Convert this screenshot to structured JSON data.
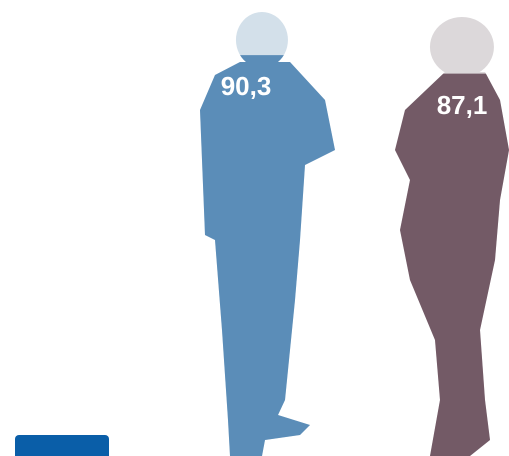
{
  "chart_data": {
    "type": "pictograph",
    "values": [
      90.3,
      87.1
    ],
    "value_labels": [
      "90,3",
      "87,1"
    ],
    "colors": [
      "#5b8db8",
      "#735a66"
    ],
    "empty_colors": [
      "#d3e0ea",
      "#dcd8da"
    ],
    "ylim": [
      0,
      100
    ]
  }
}
